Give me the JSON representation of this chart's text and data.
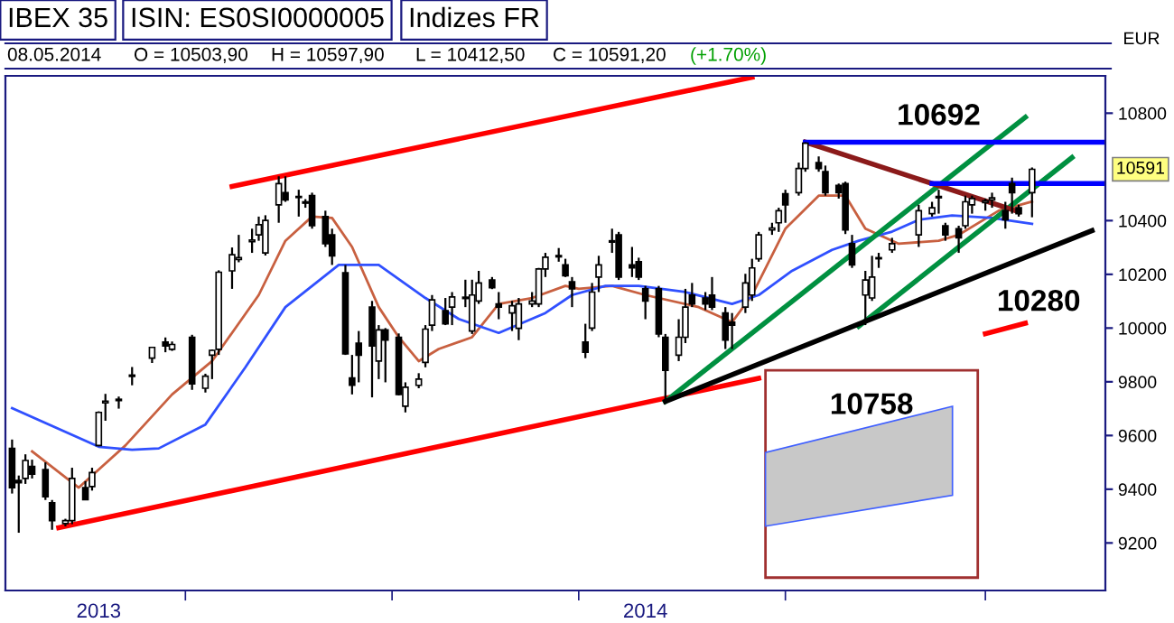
{
  "chart_data": {
    "type": "candlestick",
    "title": "IBEX 35",
    "subtitle": "ISIN: ES0SI0000005",
    "ylabel": "EUR",
    "annotations": [
      "Indizes FR",
      "08.05.2014",
      "O = 10503,90",
      "H = 10597,90",
      "L = 10412,50",
      "C = 10591,20",
      "(+1.70%)",
      "10758",
      {
        "text": "10692",
        "x": "2014-04-24",
        "y": 10692
      },
      {
        "text": "10280",
        "x": "2014-05-09",
        "y": 10280
      },
      "10591"
    ],
    "x": [
      "2013-12-06",
      "2013-12-07",
      "2013-12-08",
      "2013-12-09",
      "2013-12-11",
      "2013-12-12",
      "2013-12-14",
      "2013-12-15",
      "2013-12-17",
      "2013-12-18",
      "2013-12-19",
      "2013-12-20",
      "2013-12-22",
      "2013-12-24",
      "2013-12-27",
      "2013-12-29",
      "2013-12-30",
      "2014-01-02",
      "2014-01-04",
      "2014-01-05",
      "2014-01-06",
      "2014-01-08",
      "2014-01-09",
      "2014-01-11",
      "2014-01-12",
      "2014-01-13",
      "2014-01-15",
      "2014-01-16",
      "2014-01-18",
      "2014-01-19",
      "2014-01-20",
      "2014-01-22",
      "2014-01-23",
      "2014-01-25",
      "2014-01-26",
      "2014-01-27",
      "2014-01-29",
      "2014-01-30",
      "2014-01-31",
      "2014-02-02",
      "2014-02-03",
      "2014-02-05",
      "2014-02-06",
      "2014-02-07",
      "2014-02-09",
      "2014-02-10",
      "2014-02-12",
      "2014-02-13",
      "2014-02-14",
      "2014-02-16",
      "2014-02-17",
      "2014-02-19",
      "2014-02-20",
      "2014-02-22",
      "2014-02-23",
      "2014-02-24",
      "2014-02-26",
      "2014-02-27",
      "2014-02-28",
      "2014-03-02",
      "2014-03-03",
      "2014-03-04",
      "2014-03-06",
      "2014-03-07",
      "2014-03-09",
      "2014-03-10",
      "2014-03-11",
      "2014-03-13",
      "2014-03-14",
      "2014-03-16",
      "2014-03-17",
      "2014-03-18",
      "2014-03-20",
      "2014-03-21",
      "2014-03-23",
      "2014-03-24",
      "2014-03-26",
      "2014-03-27",
      "2014-03-28",
      "2014-03-30",
      "2014-03-31",
      "2014-04-01",
      "2014-04-03",
      "2014-04-04",
      "2014-04-06",
      "2014-04-07",
      "2014-04-09",
      "2014-04-10",
      "2014-04-11",
      "2014-04-13",
      "2014-04-14",
      "2014-04-15",
      "2014-04-17",
      "2014-04-21",
      "2014-04-23",
      "2014-04-24",
      "2014-04-25",
      "2014-04-27",
      "2014-04-28",
      "2014-04-29",
      "2014-05-01",
      "2014-05-02",
      "2014-05-04",
      "2014-05-05",
      "2014-05-06",
      "2014-05-08"
    ],
    "ohlc": [
      [
        9552,
        9585,
        9384,
        9406
      ],
      [
        9433,
        9451,
        9238,
        9424
      ],
      [
        9440,
        9530,
        9420,
        9507
      ],
      [
        9485,
        9510,
        9440,
        9456
      ],
      [
        9473,
        9500,
        9360,
        9372
      ],
      [
        9350,
        9360,
        9249,
        9283
      ],
      [
        9272,
        9290,
        9262,
        9283
      ],
      [
        9283,
        9480,
        9270,
        9440
      ],
      [
        9406,
        9430,
        9360,
        9361
      ],
      [
        9410,
        9480,
        9395,
        9462
      ],
      [
        9563,
        9690,
        9560,
        9686
      ],
      [
        9722,
        9755,
        9655,
        9728
      ],
      [
        9730,
        9745,
        9700,
        9735
      ],
      [
        9820,
        9855,
        9787,
        9825
      ],
      [
        9888,
        9930,
        9870,
        9928
      ],
      [
        9948,
        9965,
        9910,
        9933
      ],
      [
        9921,
        9950,
        9915,
        9939
      ],
      [
        9966,
        9975,
        9770,
        9792
      ],
      [
        9776,
        9830,
        9760,
        9821
      ],
      [
        9899,
        9920,
        9810,
        9917
      ],
      [
        9921,
        10215,
        9900,
        10208
      ],
      [
        10213,
        10300,
        10146,
        10273
      ],
      [
        10255,
        10347,
        10245,
        10262
      ],
      [
        10322,
        10370,
        10280,
        10328
      ],
      [
        10347,
        10415,
        10325,
        10385
      ],
      [
        10280,
        10420,
        10270,
        10401
      ],
      [
        10459,
        10565,
        10392,
        10538
      ],
      [
        10504,
        10565,
        10470,
        10477
      ],
      [
        10490,
        10515,
        10415,
        10486
      ],
      [
        10470,
        10480,
        10448,
        10465
      ],
      [
        10493,
        10504,
        10370,
        10381
      ],
      [
        10415,
        10437,
        10302,
        10314
      ],
      [
        10347,
        10370,
        10235,
        10269
      ],
      [
        10206,
        10235,
        9900,
        9904
      ],
      [
        9814,
        9900,
        9753,
        9787
      ],
      [
        9944,
        9989,
        9798,
        9899
      ],
      [
        10078,
        10101,
        9742,
        9933
      ],
      [
        9877,
        10011,
        9810,
        9993
      ],
      [
        9993,
        10000,
        9798,
        9955
      ],
      [
        9966,
        9980,
        9749,
        9753
      ],
      [
        9709,
        9798,
        9686,
        9780
      ],
      [
        9787,
        9832,
        9776,
        9810
      ],
      [
        9872,
        10011,
        9854,
        9996
      ],
      [
        10011,
        10123,
        9989,
        10105
      ],
      [
        10065,
        10112,
        10011,
        10016
      ],
      [
        10078,
        10134,
        10011,
        10116
      ],
      [
        10110,
        10180,
        10078,
        10115
      ],
      [
        9989,
        10180,
        9978,
        10123
      ],
      [
        10101,
        10213,
        10090,
        10168
      ],
      [
        10179,
        10190,
        10145,
        10150
      ],
      [
        10090,
        10134,
        10033,
        10078
      ],
      [
        10056,
        10101,
        9989,
        10083
      ],
      [
        9999,
        10112,
        9955,
        10090
      ],
      [
        10090,
        10134,
        10078,
        10101
      ],
      [
        10090,
        10224,
        10078,
        10220
      ],
      [
        10220,
        10280,
        10190,
        10264
      ],
      [
        10265,
        10298,
        10247,
        10270
      ],
      [
        10235,
        10258,
        10190,
        10195
      ],
      [
        10172,
        10190,
        10078,
        10146
      ],
      [
        9948,
        10016,
        9888,
        9910
      ],
      [
        10000,
        10168,
        9989,
        10134
      ],
      [
        10190,
        10269,
        10134,
        10235
      ],
      [
        10320,
        10370,
        10280,
        10325
      ],
      [
        10347,
        10358,
        10179,
        10190
      ],
      [
        10235,
        10302,
        10190,
        10224
      ],
      [
        10247,
        10262,
        10179,
        10190
      ],
      [
        10146,
        10157,
        10033,
        10101
      ],
      [
        10146,
        10157,
        9966,
        9978
      ],
      [
        9966,
        9978,
        9720,
        9843
      ],
      [
        9899,
        10033,
        9877,
        9966
      ],
      [
        9966,
        10146,
        9944,
        10078
      ],
      [
        10123,
        10168,
        10078,
        10090
      ],
      [
        10112,
        10134,
        10067,
        10090
      ],
      [
        10123,
        10190,
        10067,
        10078
      ],
      [
        10056,
        10078,
        9922,
        9955
      ],
      [
        10022,
        10056,
        9922,
        10011
      ],
      [
        10078,
        10202,
        10056,
        10168
      ],
      [
        10123,
        10258,
        10101,
        10224
      ],
      [
        10258,
        10358,
        10247,
        10347
      ],
      [
        10365,
        10392,
        10347,
        10372
      ],
      [
        10392,
        10448,
        10358,
        10437
      ],
      [
        10500,
        10515,
        10392,
        10459
      ],
      [
        10504,
        10616,
        10493,
        10594
      ],
      [
        10594,
        10692,
        10582,
        10688
      ],
      [
        10616,
        10639,
        10582,
        10594
      ],
      [
        10582,
        10605,
        10493,
        10504
      ],
      [
        10531,
        10538,
        10482,
        10504
      ],
      [
        10538,
        10545,
        10350,
        10365
      ],
      [
        10314,
        10347,
        10224,
        10235
      ],
      [
        10123,
        10213,
        10011,
        10179
      ],
      [
        10112,
        10269,
        10101,
        10190
      ],
      [
        10258,
        10280,
        10224,
        10262
      ],
      [
        10291,
        10336,
        10280,
        10314
      ],
      [
        10347,
        10459,
        10302,
        10437
      ],
      [
        10426,
        10470,
        10415,
        10448
      ],
      [
        10485,
        10515,
        10426,
        10490
      ],
      [
        10381,
        10392,
        10325,
        10347
      ],
      [
        10370,
        10381,
        10280,
        10336
      ],
      [
        10381,
        10493,
        10370,
        10470
      ],
      [
        10459,
        10493,
        10426,
        10482
      ],
      [
        10467,
        10482,
        10437,
        10474
      ],
      [
        10477,
        10504,
        10448,
        10485
      ],
      [
        10437,
        10470,
        10370,
        10403
      ],
      [
        10538,
        10560,
        10426,
        10504
      ],
      [
        10448,
        10459,
        10415,
        10426
      ],
      [
        10503.9,
        10597.9,
        10412.5,
        10591.2
      ]
    ],
    "series": [
      {
        "type": "line",
        "color": "#c86040",
        "x": [
          "2013-12-09",
          "2013-12-16",
          "2013-12-23",
          "2013-12-30",
          "2014-01-05",
          "2014-01-12",
          "2014-01-16",
          "2014-01-20",
          "2014-01-23",
          "2014-01-26",
          "2014-01-30",
          "2014-02-02",
          "2014-02-05",
          "2014-02-08",
          "2014-02-13",
          "2014-02-17",
          "2014-02-22",
          "2014-02-27",
          "2014-03-01",
          "2014-03-06",
          "2014-03-11",
          "2014-03-19",
          "2014-03-24",
          "2014-03-27",
          "2014-04-01",
          "2014-04-06",
          "2014-04-10",
          "2014-04-13",
          "2014-04-18",
          "2014-04-24",
          "2014-04-27",
          "2014-05-03",
          "2014-05-08"
        ],
        "values": [
          9541,
          9406,
          9563,
          9753,
          9877,
          10123,
          10325,
          10415,
          10410,
          10302,
          10078,
          9966,
          9877,
          9922,
          9966,
          10090,
          10112,
          10157,
          10146,
          10157,
          10123,
          10078,
          10022,
          10123,
          10370,
          10493,
          10493,
          10370,
          10314,
          10325,
          10347,
          10437,
          10471
        ]
      },
      {
        "type": "line",
        "color": "#3050ff",
        "x": [
          "2013-12-06",
          "2013-12-19",
          "2013-12-24",
          "2013-12-28",
          "2014-01-04",
          "2014-01-10",
          "2014-01-16",
          "2014-01-24",
          "2014-01-30",
          "2014-02-06",
          "2014-02-11",
          "2014-02-17",
          "2014-02-24",
          "2014-02-28",
          "2014-03-05",
          "2014-03-10",
          "2014-03-17",
          "2014-03-24",
          "2014-03-28",
          "2014-04-02",
          "2014-04-08",
          "2014-04-12",
          "2014-04-17",
          "2014-04-21",
          "2014-04-26",
          "2014-05-02",
          "2014-05-08"
        ],
        "values": [
          9702,
          9558,
          9547,
          9552,
          9641,
          9854,
          10078,
          10235,
          10235,
          10112,
          10034,
          9982,
          10056,
          10123,
          10157,
          10157,
          10134,
          10090,
          10123,
          10213,
          10291,
          10325,
          10359,
          10403,
          10419,
          10410,
          10388
        ]
      },
      {
        "type": "line",
        "color": "#ff0000",
        "x": [
          "2014-01-08",
          "2014-03-27"
        ],
        "values": [
          10527,
          10934
        ]
      },
      {
        "type": "line",
        "color": "#ff0000",
        "x": [
          "2013-12-13",
          "2014-03-28",
          "2014-04-15",
          "2014-05-01",
          "2014-05-07"
        ],
        "values": [
          9257,
          9813,
          null,
          9979,
          10018
        ]
      },
      {
        "type": "line",
        "color": "#009040",
        "x": [
          "2014-03-14",
          "2014-05-07"
        ],
        "values": [
          9727,
          10785
        ]
      },
      {
        "type": "line",
        "color": "#009040",
        "x": [
          "2014-04-12",
          "2014-05-14"
        ],
        "values": [
          10007,
          10635
        ]
      },
      {
        "type": "line",
        "color": "#000000",
        "x": [
          "2014-03-14",
          "2014-05-17"
        ],
        "values": [
          9727,
          10363
        ]
      },
      {
        "type": "line",
        "color": "#8b1a1a",
        "x": [
          "2014-04-04",
          "2014-05-06"
        ],
        "values": [
          10692,
          10433
        ]
      },
      {
        "type": "line",
        "color": "#0000ff",
        "x": [
          "2014-04-04",
          "2014-05-19"
        ],
        "values": [
          10692,
          10692
        ]
      },
      {
        "type": "line",
        "color": "#0000ff",
        "x": [
          "2014-04-23",
          "2014-05-19"
        ],
        "values": [
          10538,
          10538
        ]
      }
    ],
    "xlim": [
      "2013-12-05",
      "2014-05-19"
    ],
    "xticks": [
      {
        "value": "2013-12-19",
        "label": "2013"
      },
      {
        "value": "2014-01-01",
        "label": null
      },
      {
        "value": "2014-02-01",
        "label": null
      },
      {
        "value": "2014-03-11",
        "label": "2014"
      },
      {
        "value": "2014-03-01",
        "label": null
      },
      {
        "value": "2014-04-01",
        "label": null
      },
      {
        "value": "2014-05-01",
        "label": null
      }
    ],
    "ylim": [
      9023,
      10939
    ],
    "yticks": [
      9200,
      9400,
      9600,
      9800,
      10000,
      10200,
      10400,
      10800
    ],
    "grid": false,
    "legend": false
  }
}
